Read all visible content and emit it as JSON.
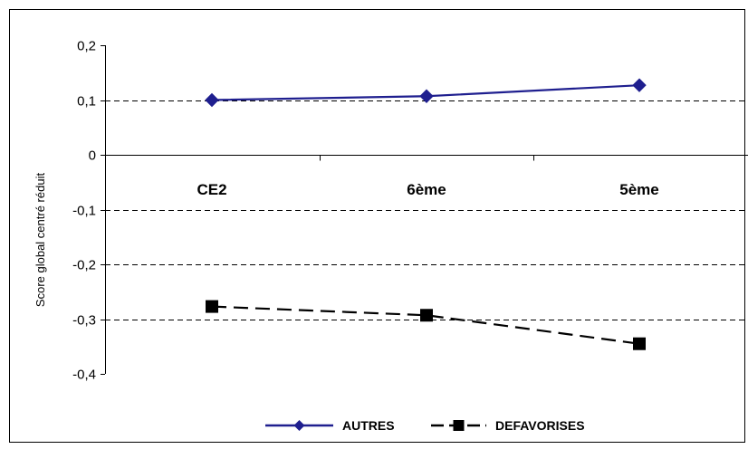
{
  "chart_data": {
    "type": "line",
    "title": "",
    "xlabel": "",
    "ylabel": "Score global centré réduit",
    "categories": [
      "CE2",
      "6ème",
      "5ème"
    ],
    "ylim": [
      -0.4,
      0.2
    ],
    "yticks": [
      0.2,
      0.1,
      0,
      -0.1,
      -0.2,
      -0.3,
      -0.4
    ],
    "ytick_labels": [
      "0,2",
      "0,1",
      "0",
      "-0,1",
      "-0,2",
      "-0,3",
      "-0,4"
    ],
    "grid": "horizontal dashed",
    "legend_position": "bottom",
    "series": [
      {
        "name": "AUTRES",
        "values": [
          0.1,
          0.107,
          0.127
        ],
        "color": "#1f1f8f",
        "marker": "diamond",
        "line_style": "solid"
      },
      {
        "name": "DEFAVORISES",
        "values": [
          -0.277,
          -0.293,
          -0.345
        ],
        "color": "#000000",
        "marker": "square",
        "line_style": "dashed"
      }
    ]
  }
}
